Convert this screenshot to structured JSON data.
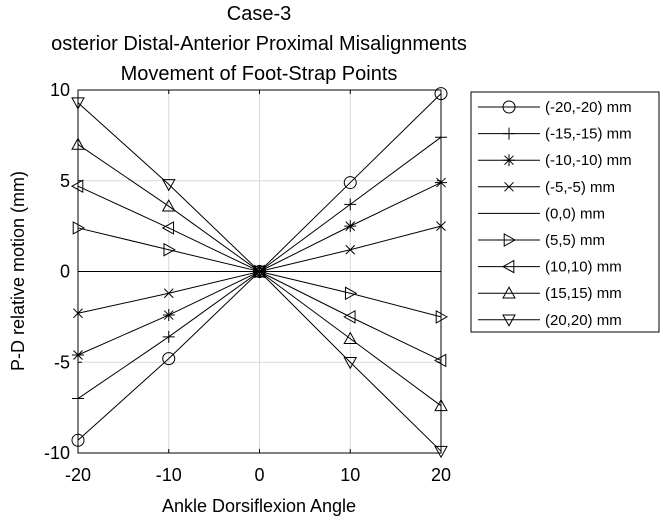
{
  "chart_data": {
    "type": "line",
    "title_lines": [
      "Case-3",
      "osterior Distal-Anterior Proximal Misalignments",
      "Movement of Foot-Strap Points"
    ],
    "xlabel": "Ankle Dorsiflexion Angle",
    "ylabel": "P-D relative motion (mm)",
    "xlim": [
      -20,
      20
    ],
    "ylim": [
      -10,
      10
    ],
    "xticks": [
      -20,
      -10,
      0,
      10,
      20
    ],
    "yticks": [
      -10,
      -5,
      0,
      5,
      10
    ],
    "xtick_labels": [
      "-20",
      "-10",
      "0",
      "10",
      "20"
    ],
    "ytick_labels": [
      "-10",
      "-5",
      "0",
      "5",
      "10"
    ],
    "grid": true,
    "legend_position": "outside-right",
    "line_color": "#000000",
    "grid_color": "#d9d9d9",
    "x": [
      -20,
      -10,
      0,
      10,
      20
    ],
    "series": [
      {
        "name": "(-20,-20) mm",
        "marker": "circle",
        "values": [
          -9.3,
          -4.8,
          0,
          4.9,
          9.8
        ]
      },
      {
        "name": "(-15,-15) mm",
        "marker": "plus",
        "values": [
          -7.0,
          -3.6,
          0,
          3.7,
          7.4
        ]
      },
      {
        "name": "(-10,-10) mm",
        "marker": "asterisk",
        "values": [
          -4.6,
          -2.4,
          0,
          2.5,
          4.9
        ]
      },
      {
        "name": "(-5,-5) mm",
        "marker": "cross",
        "values": [
          -2.3,
          -1.2,
          0,
          1.2,
          2.5
        ]
      },
      {
        "name": "(0,0) mm",
        "marker": "none",
        "values": [
          0,
          0,
          0,
          0,
          0
        ]
      },
      {
        "name": "(5,5) mm",
        "marker": "triangle-right",
        "values": [
          2.4,
          1.2,
          0,
          -1.2,
          -2.5
        ]
      },
      {
        "name": "(10,10) mm",
        "marker": "triangle-left",
        "values": [
          4.7,
          2.4,
          0,
          -2.5,
          -4.9
        ]
      },
      {
        "name": "(15,15) mm",
        "marker": "triangle-up",
        "values": [
          7.0,
          3.6,
          0,
          -3.7,
          -7.4
        ]
      },
      {
        "name": "(20,20) mm",
        "marker": "triangle-down",
        "values": [
          9.3,
          4.8,
          0,
          -5.0,
          -9.9
        ]
      }
    ]
  }
}
